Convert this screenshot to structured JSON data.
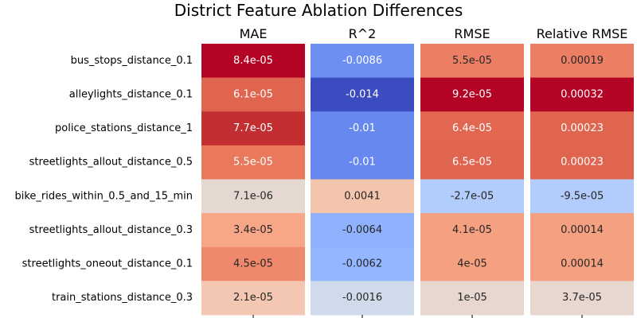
{
  "chart_data": {
    "type": "heatmap",
    "title": "District Feature Ablation Differences",
    "colormap": "coolwarm",
    "rows": [
      "bus_stops_distance_0.1",
      "alleylights_distance_0.1",
      "police_stations_distance_1",
      "streetlights_allout_distance_0.5",
      "bike_rides_within_0.5_and_15_min",
      "streetlights_allout_distance_0.3",
      "streetlights_oneout_distance_0.1",
      "train_stations_distance_0.3"
    ],
    "columns": [
      {
        "name": "MAE",
        "values": [
          8.4e-05,
          6.1e-05,
          7.7e-05,
          5.5e-05,
          7.1e-06,
          3.4e-05,
          4.5e-05,
          2.1e-05
        ],
        "labels": [
          "8.4e-05",
          "6.1e-05",
          "7.7e-05",
          "5.5e-05",
          "7.1e-06",
          "3.4e-05",
          "4.5e-05",
          "2.1e-05"
        ],
        "colors": [
          "#b40426",
          "#e0654f",
          "#c32e31",
          "#e9785d",
          "#e5d8d1",
          "#f7a688",
          "#ef896c",
          "#f3c7b1"
        ]
      },
      {
        "name": "R^2",
        "values": [
          -0.0086,
          -0.014,
          -0.01,
          -0.01,
          0.0041,
          -0.0064,
          -0.0062,
          -0.0016
        ],
        "labels": [
          "-0.0086",
          "-0.014",
          "-0.01",
          "-0.01",
          "0.0041",
          "-0.0064",
          "-0.0062",
          "-0.0016"
        ],
        "colors": [
          "#6c8ff1",
          "#3b4cc0",
          "#6788ee",
          "#6788ee",
          "#f4c5ad",
          "#8fb1fe",
          "#94b6ff",
          "#cfdaea"
        ]
      },
      {
        "name": "RMSE",
        "values": [
          5.5e-05,
          9.2e-05,
          6.4e-05,
          6.5e-05,
          -2.7e-05,
          4.1e-05,
          4e-05,
          1e-05
        ],
        "labels": [
          "5.5e-05",
          "9.2e-05",
          "6.4e-05",
          "6.5e-05",
          "-2.7e-05",
          "4.1e-05",
          "4e-05",
          "1e-05"
        ],
        "colors": [
          "#ec7f63",
          "#b40426",
          "#e16751",
          "#e0654f",
          "#b2ccfb",
          "#f5a081",
          "#f5a081",
          "#e7d7ce"
        ]
      },
      {
        "name": "Relative RMSE",
        "values": [
          0.00019,
          0.00032,
          0.00023,
          0.00023,
          -9.5e-05,
          0.00014,
          0.00014,
          3.7e-05
        ],
        "labels": [
          "0.00019",
          "0.00032",
          "0.00023",
          "0.00023",
          "-9.5e-05",
          "0.00014",
          "0.00014",
          "3.7e-05"
        ],
        "colors": [
          "#ec7f63",
          "#b40426",
          "#e0654f",
          "#e0654f",
          "#b2ccfb",
          "#f5a081",
          "#f5a081",
          "#e7d7ce"
        ]
      }
    ]
  }
}
